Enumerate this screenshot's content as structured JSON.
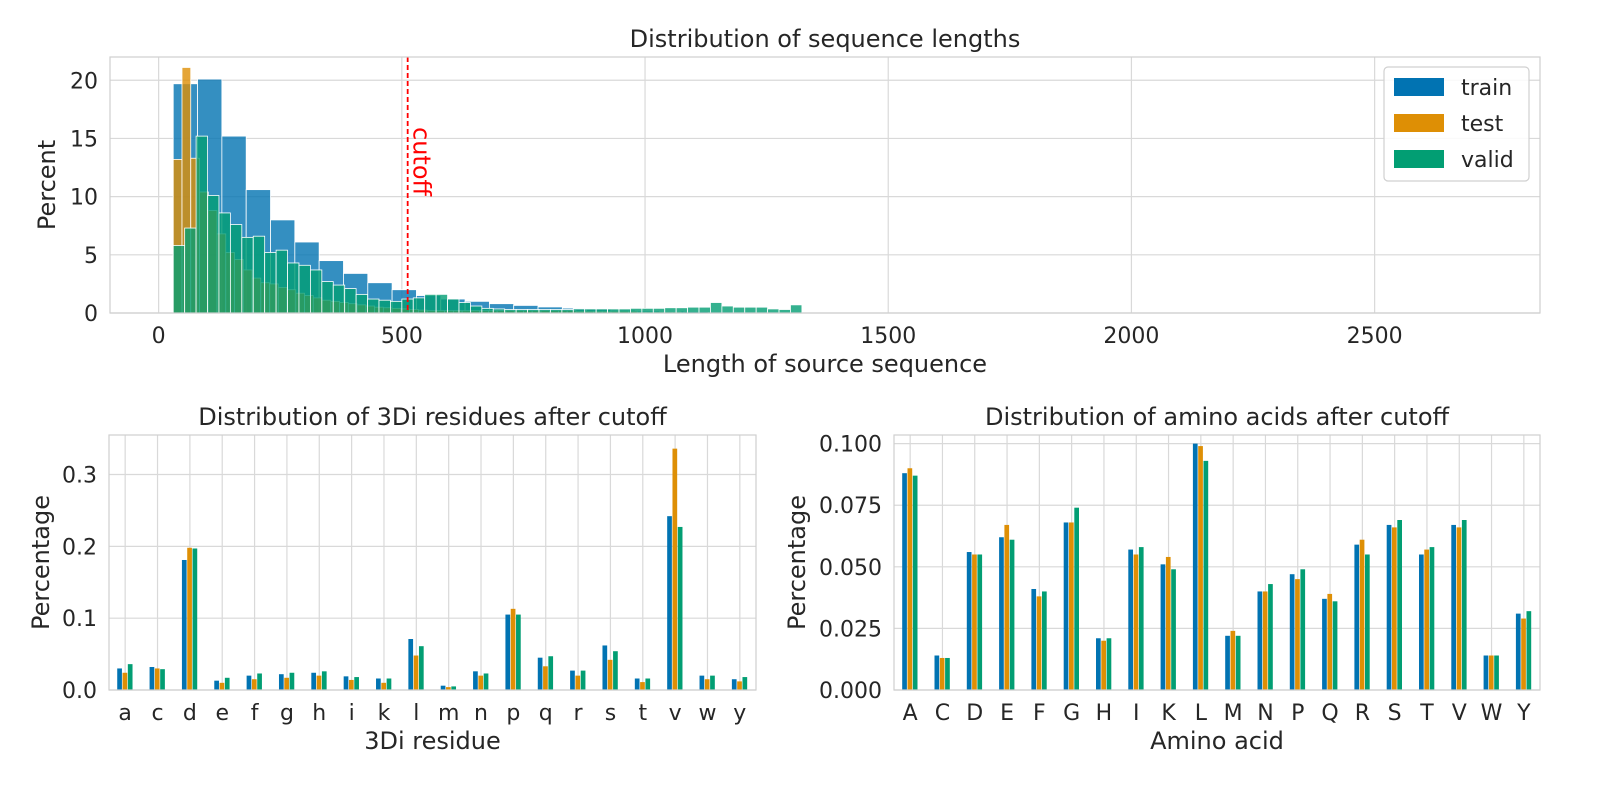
{
  "colors": {
    "train": "#0173b2",
    "test": "#de8f05",
    "valid": "#029e73",
    "cutoff": "#ff0000"
  },
  "chart_data": [
    {
      "type": "bar",
      "subtype": "histogram",
      "title": "Distribution of sequence lengths",
      "xlabel": "Length of source sequence",
      "ylabel": "Percent",
      "xlim": [
        -100,
        2840
      ],
      "ylim": [
        0,
        22
      ],
      "xticks": [
        "0",
        "500",
        "1000",
        "1500",
        "2000",
        "2500"
      ],
      "yticks": [
        "0",
        "5",
        "10",
        "15",
        "20"
      ],
      "grid": true,
      "legend": {
        "position": "top-right",
        "entries": [
          "train",
          "test",
          "valid"
        ]
      },
      "annotation": {
        "label": "cutoff",
        "x": 512
      },
      "series": [
        {
          "name": "train",
          "bin_start": 30,
          "bin_width": 50,
          "values": [
            19.7,
            20.1,
            15.2,
            10.6,
            8.0,
            6.1,
            4.5,
            3.4,
            2.6,
            2.0,
            1.5,
            1.2,
            1.0,
            0.8,
            0.65,
            0.52,
            0.42,
            0.32,
            0.25,
            0.2,
            0.15,
            0.12,
            0.09,
            0.07,
            0.05
          ]
        },
        {
          "name": "test",
          "bin_start": 30,
          "bin_width": 18,
          "values": [
            13.2,
            21.1,
            13.3,
            10.4,
            8.8,
            6.8,
            5.2,
            4.6,
            3.7,
            3.0,
            2.6,
            2.5,
            2.2,
            2.0,
            1.7,
            1.5,
            1.3,
            1.1,
            1.0,
            0.9,
            0.8,
            0.7,
            0.6,
            0.5,
            0.45,
            0.4,
            0.35,
            0.3,
            0.25,
            0.2,
            0.2,
            0.2,
            0.2,
            0.2,
            0.2,
            0.2,
            0.2,
            0.2,
            0.2,
            0.2,
            0.2,
            0.2,
            0.2,
            0.2,
            0.2,
            0.2,
            0.15,
            0.15,
            0.15,
            0.15,
            0.15,
            0.15,
            0.15,
            0.1,
            0.1,
            0.1,
            0.1,
            0.1
          ]
        },
        {
          "name": "valid",
          "bin_start": 30,
          "bin_width": 23.5,
          "values": [
            5.8,
            7.3,
            15.2,
            10.1,
            8.6,
            7.6,
            6.5,
            6.6,
            5.2,
            5.4,
            4.3,
            4.1,
            3.7,
            2.7,
            2.4,
            2.1,
            1.6,
            1.2,
            1.1,
            1.0,
            1.2,
            1.3,
            1.6,
            1.6,
            1.2,
            0.9,
            0.6,
            0.4,
            0.35,
            0.3,
            0.3,
            0.3,
            0.3,
            0.3,
            0.3,
            0.35,
            0.35,
            0.35,
            0.35,
            0.35,
            0.4,
            0.4,
            0.4,
            0.45,
            0.45,
            0.5,
            0.5,
            0.9,
            0.6,
            0.5,
            0.5,
            0.5,
            0.35,
            0.3,
            0.7
          ]
        }
      ]
    },
    {
      "type": "bar",
      "title": "Distribution of 3Di residues after cutoff",
      "xlabel": "3Di residue",
      "ylabel": "Percentage",
      "ylim": [
        0,
        0.355
      ],
      "yticks": [
        0.0,
        0.1,
        0.2,
        0.3
      ],
      "ytick_labels": [
        "0.0",
        "0.1",
        "0.2",
        "0.3"
      ],
      "grid": true,
      "categories": [
        "a",
        "c",
        "d",
        "e",
        "f",
        "g",
        "h",
        "i",
        "k",
        "l",
        "m",
        "n",
        "p",
        "q",
        "r",
        "s",
        "t",
        "v",
        "w",
        "y"
      ],
      "series": [
        {
          "name": "train",
          "values": [
            0.03,
            0.032,
            0.181,
            0.013,
            0.02,
            0.022,
            0.024,
            0.019,
            0.016,
            0.071,
            0.006,
            0.026,
            0.105,
            0.045,
            0.027,
            0.062,
            0.016,
            0.242,
            0.02,
            0.015
          ]
        },
        {
          "name": "test",
          "values": [
            0.024,
            0.03,
            0.198,
            0.01,
            0.015,
            0.017,
            0.02,
            0.014,
            0.01,
            0.048,
            0.004,
            0.02,
            0.113,
            0.033,
            0.02,
            0.042,
            0.011,
            0.336,
            0.015,
            0.012
          ]
        },
        {
          "name": "valid",
          "values": [
            0.036,
            0.029,
            0.197,
            0.017,
            0.023,
            0.024,
            0.026,
            0.018,
            0.016,
            0.061,
            0.005,
            0.023,
            0.105,
            0.047,
            0.027,
            0.054,
            0.016,
            0.227,
            0.02,
            0.018
          ]
        }
      ]
    },
    {
      "type": "bar",
      "title": "Distribution of amino acids after cutoff",
      "xlabel": "Amino acid",
      "ylabel": "Percentage",
      "ylim": [
        0,
        0.1035
      ],
      "yticks": [
        0.0,
        0.025,
        0.05,
        0.075,
        0.1
      ],
      "ytick_labels": [
        "0.000",
        "0.025",
        "0.050",
        "0.075",
        "0.100"
      ],
      "grid": true,
      "categories": [
        "A",
        "C",
        "D",
        "E",
        "F",
        "G",
        "H",
        "I",
        "K",
        "L",
        "M",
        "N",
        "P",
        "Q",
        "R",
        "S",
        "T",
        "V",
        "W",
        "Y"
      ],
      "series": [
        {
          "name": "train",
          "values": [
            0.088,
            0.014,
            0.056,
            0.062,
            0.041,
            0.068,
            0.021,
            0.057,
            0.051,
            0.1,
            0.022,
            0.04,
            0.047,
            0.037,
            0.059,
            0.067,
            0.055,
            0.067,
            0.014,
            0.031
          ]
        },
        {
          "name": "test",
          "values": [
            0.09,
            0.013,
            0.055,
            0.067,
            0.038,
            0.068,
            0.02,
            0.055,
            0.054,
            0.099,
            0.024,
            0.04,
            0.045,
            0.039,
            0.061,
            0.066,
            0.057,
            0.066,
            0.014,
            0.029
          ]
        },
        {
          "name": "valid",
          "values": [
            0.087,
            0.013,
            0.055,
            0.061,
            0.04,
            0.074,
            0.021,
            0.058,
            0.049,
            0.093,
            0.022,
            0.043,
            0.049,
            0.036,
            0.055,
            0.069,
            0.058,
            0.069,
            0.014,
            0.032
          ]
        }
      ]
    }
  ]
}
